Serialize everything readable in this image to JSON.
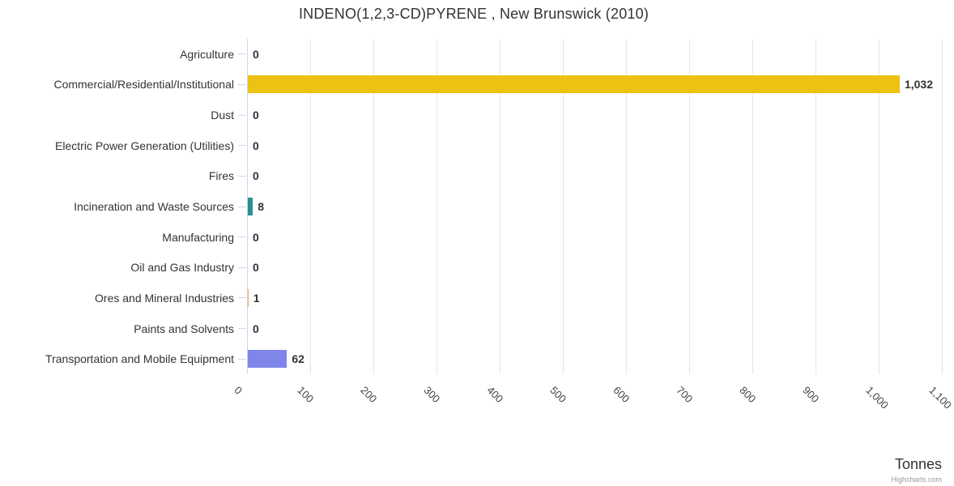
{
  "title": "INDENO(1,2,3-CD)PYRENE , New Brunswick (2010)",
  "credit": "Highcharts.com",
  "chart_data": {
    "type": "bar",
    "orientation": "horizontal",
    "title": "INDENO(1,2,3-CD)PYRENE , New Brunswick (2010)",
    "xlabel": "Tonnes",
    "ylabel": "",
    "xlim": [
      0,
      1100
    ],
    "grid": true,
    "legend": false,
    "categories": [
      "Agriculture",
      "Commercial/Residential/Institutional",
      "Dust",
      "Electric Power Generation (Utilities)",
      "Fires",
      "Incineration and Waste Sources",
      "Manufacturing",
      "Oil and Gas Industry",
      "Ores and Mineral Industries",
      "Paints and Solvents",
      "Transportation and Mobile Equipment"
    ],
    "values": [
      0,
      1032,
      0,
      0,
      0,
      8,
      0,
      0,
      1,
      0,
      62
    ],
    "value_labels": [
      "0",
      "1,032",
      "0",
      "0",
      "0",
      "8",
      "0",
      "0",
      "1",
      "0",
      "62"
    ],
    "bar_colors": [
      "#7cb5ec",
      "#edc213",
      "#7cb5ec",
      "#7cb5ec",
      "#7cb5ec",
      "#2b908f",
      "#7cb5ec",
      "#7cb5ec",
      "#f7a35c",
      "#7cb5ec",
      "#8085e9"
    ],
    "x_ticks": [
      0,
      100,
      200,
      300,
      400,
      500,
      600,
      700,
      800,
      900,
      1000,
      1100
    ],
    "x_tick_labels": [
      "0",
      "100",
      "200",
      "300",
      "400",
      "500",
      "600",
      "700",
      "800",
      "900",
      "1,000",
      "1,100"
    ],
    "colors": {
      "grid": "#e6e6e6",
      "axis_line": "#ccd6eb",
      "title_text": "#333333",
      "label_text": "#333333",
      "tick_text": "#444444",
      "credit_text": "#999999"
    }
  }
}
